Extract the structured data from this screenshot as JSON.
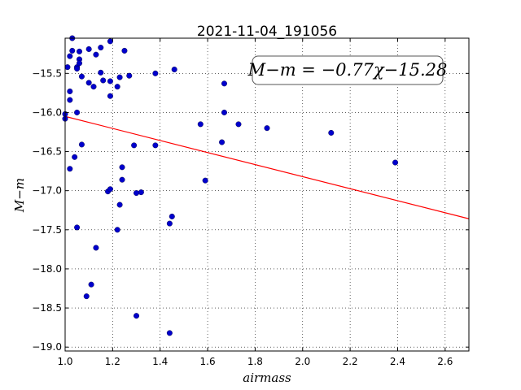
{
  "chart_data": {
    "type": "scatter",
    "title": "2021-11-04_191056",
    "xlabel": "airmass",
    "ylabel": "M−m",
    "xlim": [
      1.0,
      2.7
    ],
    "ylim": [
      -19.05,
      -15.05
    ],
    "x_ticks": [
      "1.0",
      "1.2",
      "1.4",
      "1.6",
      "1.8",
      "2.0",
      "2.2",
      "2.4",
      "2.6"
    ],
    "y_ticks": [
      "−19.0",
      "−18.5",
      "−18.0",
      "−17.5",
      "−17.0",
      "−16.5",
      "−16.0",
      "−15.5"
    ],
    "grid": true,
    "annotation": "M−m = −0.77χ−15.28",
    "fit_line": {
      "slope": -0.77,
      "intercept": -15.28,
      "color": "#ff0000"
    },
    "point_color": "#0000cc",
    "points": [
      {
        "x": 1.0,
        "y": -16.02
      },
      {
        "x": 1.0,
        "y": -16.08
      },
      {
        "x": 1.01,
        "y": -15.42
      },
      {
        "x": 1.02,
        "y": -15.28
      },
      {
        "x": 1.02,
        "y": -15.73
      },
      {
        "x": 1.02,
        "y": -15.84
      },
      {
        "x": 1.02,
        "y": -16.72
      },
      {
        "x": 1.03,
        "y": -15.05
      },
      {
        "x": 1.03,
        "y": -15.21
      },
      {
        "x": 1.04,
        "y": -16.57
      },
      {
        "x": 1.05,
        "y": -15.42
      },
      {
        "x": 1.05,
        "y": -15.44
      },
      {
        "x": 1.05,
        "y": -16.0
      },
      {
        "x": 1.05,
        "y": -17.47
      },
      {
        "x": 1.06,
        "y": -15.22
      },
      {
        "x": 1.06,
        "y": -15.32
      },
      {
        "x": 1.06,
        "y": -15.37
      },
      {
        "x": 1.07,
        "y": -15.54
      },
      {
        "x": 1.07,
        "y": -16.41
      },
      {
        "x": 1.09,
        "y": -18.35
      },
      {
        "x": 1.1,
        "y": -15.19
      },
      {
        "x": 1.1,
        "y": -15.62
      },
      {
        "x": 1.11,
        "y": -18.2
      },
      {
        "x": 1.12,
        "y": -15.67
      },
      {
        "x": 1.13,
        "y": -15.26
      },
      {
        "x": 1.13,
        "y": -17.73
      },
      {
        "x": 1.15,
        "y": -15.17
      },
      {
        "x": 1.15,
        "y": -15.49
      },
      {
        "x": 1.16,
        "y": -15.59
      },
      {
        "x": 1.18,
        "y": -17.01
      },
      {
        "x": 1.19,
        "y": -15.09
      },
      {
        "x": 1.19,
        "y": -15.6
      },
      {
        "x": 1.19,
        "y": -15.79
      },
      {
        "x": 1.19,
        "y": -16.98
      },
      {
        "x": 1.22,
        "y": -15.67
      },
      {
        "x": 1.22,
        "y": -17.5
      },
      {
        "x": 1.23,
        "y": -15.55
      },
      {
        "x": 1.23,
        "y": -17.18
      },
      {
        "x": 1.24,
        "y": -16.7
      },
      {
        "x": 1.24,
        "y": -16.86
      },
      {
        "x": 1.25,
        "y": -15.21
      },
      {
        "x": 1.27,
        "y": -15.53
      },
      {
        "x": 1.29,
        "y": -16.42
      },
      {
        "x": 1.3,
        "y": -17.03
      },
      {
        "x": 1.3,
        "y": -18.6
      },
      {
        "x": 1.32,
        "y": -17.02
      },
      {
        "x": 1.38,
        "y": -15.5
      },
      {
        "x": 1.38,
        "y": -16.42
      },
      {
        "x": 1.44,
        "y": -18.82
      },
      {
        "x": 1.44,
        "y": -17.42
      },
      {
        "x": 1.45,
        "y": -17.33
      },
      {
        "x": 1.46,
        "y": -15.45
      },
      {
        "x": 1.57,
        "y": -16.15
      },
      {
        "x": 1.59,
        "y": -16.87
      },
      {
        "x": 1.66,
        "y": -16.38
      },
      {
        "x": 1.67,
        "y": -15.63
      },
      {
        "x": 1.67,
        "y": -16.0
      },
      {
        "x": 1.73,
        "y": -16.15
      },
      {
        "x": 1.85,
        "y": -16.2
      },
      {
        "x": 2.12,
        "y": -16.26
      },
      {
        "x": 2.39,
        "y": -16.64
      }
    ]
  }
}
